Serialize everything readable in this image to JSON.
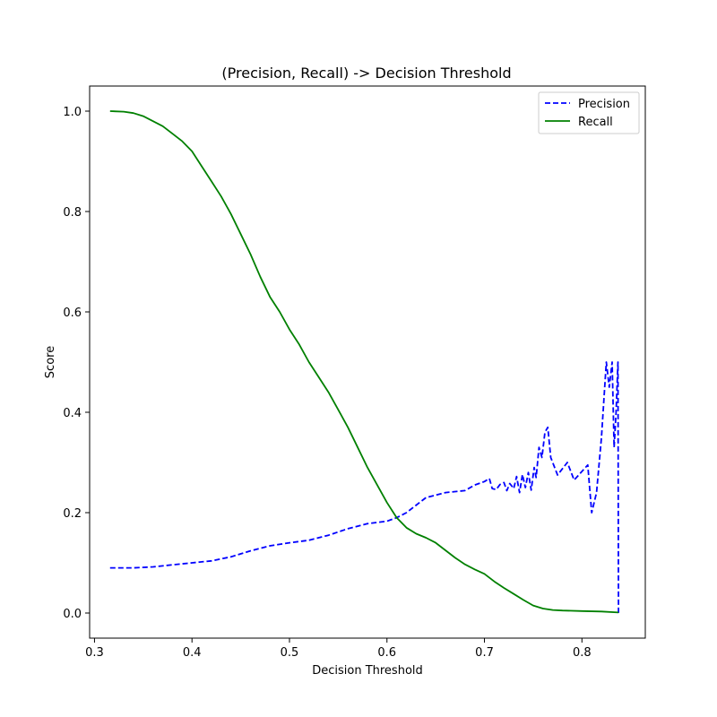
{
  "chart_data": {
    "type": "line",
    "title": "(Precision, Recall) -> Decision Threshold",
    "xlabel": "Decision Threshold",
    "ylabel": "Score",
    "xlim": [
      0.295,
      0.865
    ],
    "ylim": [
      -0.05,
      1.05
    ],
    "xticks": [
      {
        "value": 0.3,
        "label": "0.3"
      },
      {
        "value": 0.4,
        "label": "0.4"
      },
      {
        "value": 0.5,
        "label": "0.5"
      },
      {
        "value": 0.6,
        "label": "0.6"
      },
      {
        "value": 0.7,
        "label": "0.7"
      },
      {
        "value": 0.8,
        "label": "0.8"
      }
    ],
    "yticks": [
      {
        "value": 0.0,
        "label": "0.0"
      },
      {
        "value": 0.2,
        "label": "0.2"
      },
      {
        "value": 0.4,
        "label": "0.4"
      },
      {
        "value": 0.6,
        "label": "0.6"
      },
      {
        "value": 0.8,
        "label": "0.8"
      },
      {
        "value": 1.0,
        "label": "1.0"
      }
    ],
    "grid": false,
    "legend_position": "top-right",
    "series": [
      {
        "name": "Precision",
        "color": "#0000ff",
        "style": "dashed",
        "points": [
          [
            0.316,
            0.09
          ],
          [
            0.34,
            0.09
          ],
          [
            0.36,
            0.092
          ],
          [
            0.38,
            0.096
          ],
          [
            0.4,
            0.1
          ],
          [
            0.42,
            0.104
          ],
          [
            0.44,
            0.112
          ],
          [
            0.46,
            0.124
          ],
          [
            0.48,
            0.134
          ],
          [
            0.5,
            0.14
          ],
          [
            0.52,
            0.145
          ],
          [
            0.54,
            0.155
          ],
          [
            0.56,
            0.168
          ],
          [
            0.58,
            0.178
          ],
          [
            0.6,
            0.183
          ],
          [
            0.61,
            0.19
          ],
          [
            0.62,
            0.2
          ],
          [
            0.63,
            0.215
          ],
          [
            0.64,
            0.23
          ],
          [
            0.65,
            0.235
          ],
          [
            0.66,
            0.24
          ],
          [
            0.67,
            0.242
          ],
          [
            0.68,
            0.244
          ],
          [
            0.69,
            0.255
          ],
          [
            0.7,
            0.262
          ],
          [
            0.705,
            0.268
          ],
          [
            0.708,
            0.248
          ],
          [
            0.712,
            0.246
          ],
          [
            0.716,
            0.256
          ],
          [
            0.72,
            0.26
          ],
          [
            0.723,
            0.244
          ],
          [
            0.726,
            0.258
          ],
          [
            0.73,
            0.248
          ],
          [
            0.733,
            0.272
          ],
          [
            0.736,
            0.24
          ],
          [
            0.739,
            0.276
          ],
          [
            0.742,
            0.25
          ],
          [
            0.745,
            0.28
          ],
          [
            0.748,
            0.245
          ],
          [
            0.751,
            0.29
          ],
          [
            0.753,
            0.27
          ],
          [
            0.756,
            0.33
          ],
          [
            0.759,
            0.31
          ],
          [
            0.762,
            0.36
          ],
          [
            0.765,
            0.37
          ],
          [
            0.768,
            0.31
          ],
          [
            0.775,
            0.275
          ],
          [
            0.785,
            0.3
          ],
          [
            0.792,
            0.265
          ],
          [
            0.806,
            0.295
          ],
          [
            0.81,
            0.2
          ],
          [
            0.815,
            0.24
          ],
          [
            0.82,
            0.35
          ],
          [
            0.825,
            0.5
          ],
          [
            0.828,
            0.45
          ],
          [
            0.831,
            0.5
          ],
          [
            0.833,
            0.33
          ],
          [
            0.835,
            0.4
          ],
          [
            0.837,
            0.5
          ],
          [
            0.8375,
            0.0
          ]
        ]
      },
      {
        "name": "Recall",
        "color": "#008000",
        "style": "solid",
        "points": [
          [
            0.316,
            1.0
          ],
          [
            0.33,
            0.999
          ],
          [
            0.34,
            0.996
          ],
          [
            0.35,
            0.99
          ],
          [
            0.36,
            0.98
          ],
          [
            0.37,
            0.97
          ],
          [
            0.38,
            0.955
          ],
          [
            0.39,
            0.94
          ],
          [
            0.4,
            0.92
          ],
          [
            0.41,
            0.89
          ],
          [
            0.42,
            0.86
          ],
          [
            0.43,
            0.83
          ],
          [
            0.44,
            0.795
          ],
          [
            0.45,
            0.755
          ],
          [
            0.46,
            0.715
          ],
          [
            0.47,
            0.67
          ],
          [
            0.48,
            0.63
          ],
          [
            0.49,
            0.6
          ],
          [
            0.5,
            0.565
          ],
          [
            0.51,
            0.535
          ],
          [
            0.52,
            0.5
          ],
          [
            0.53,
            0.47
          ],
          [
            0.54,
            0.44
          ],
          [
            0.55,
            0.405
          ],
          [
            0.56,
            0.37
          ],
          [
            0.57,
            0.33
          ],
          [
            0.58,
            0.29
          ],
          [
            0.59,
            0.255
          ],
          [
            0.6,
            0.22
          ],
          [
            0.61,
            0.19
          ],
          [
            0.62,
            0.17
          ],
          [
            0.63,
            0.158
          ],
          [
            0.64,
            0.15
          ],
          [
            0.65,
            0.14
          ],
          [
            0.66,
            0.125
          ],
          [
            0.67,
            0.11
          ],
          [
            0.68,
            0.097
          ],
          [
            0.69,
            0.087
          ],
          [
            0.7,
            0.078
          ],
          [
            0.71,
            0.063
          ],
          [
            0.72,
            0.05
          ],
          [
            0.73,
            0.038
          ],
          [
            0.74,
            0.026
          ],
          [
            0.75,
            0.015
          ],
          [
            0.76,
            0.009
          ],
          [
            0.77,
            0.006
          ],
          [
            0.78,
            0.005
          ],
          [
            0.8,
            0.004
          ],
          [
            0.82,
            0.003
          ],
          [
            0.8375,
            0.001
          ]
        ]
      }
    ]
  }
}
